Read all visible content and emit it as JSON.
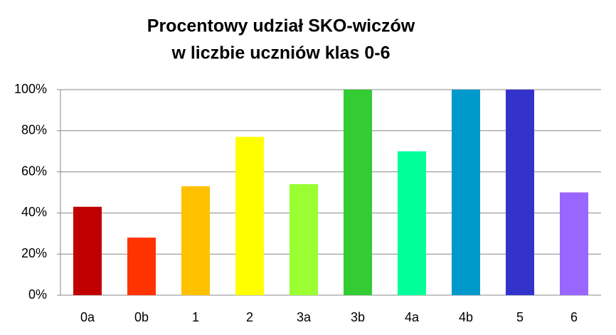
{
  "chart_data": {
    "type": "bar",
    "title": [
      "Procentowy udział SKO-wiczów",
      "w liczbie uczniów klas 0-6"
    ],
    "categories": [
      "0a",
      "0b",
      "1",
      "2",
      "3a",
      "3b",
      "4a",
      "4b",
      "5",
      "6"
    ],
    "values": [
      43,
      28,
      53,
      77,
      54,
      100,
      70,
      100,
      100,
      50
    ],
    "colors": [
      "#c00000",
      "#ff3300",
      "#ffc000",
      "#ffff00",
      "#99ff33",
      "#33cc33",
      "#00ff99",
      "#0099cc",
      "#3333cc",
      "#9966ff"
    ],
    "ylim": [
      0,
      100
    ],
    "yticks": [
      {
        "value": 0,
        "label": "0%"
      },
      {
        "value": 20,
        "label": "20%"
      },
      {
        "value": 40,
        "label": "40%"
      },
      {
        "value": 60,
        "label": "60%"
      },
      {
        "value": 80,
        "label": "80%"
      },
      {
        "value": 100,
        "label": "100%"
      }
    ],
    "grid": true
  }
}
